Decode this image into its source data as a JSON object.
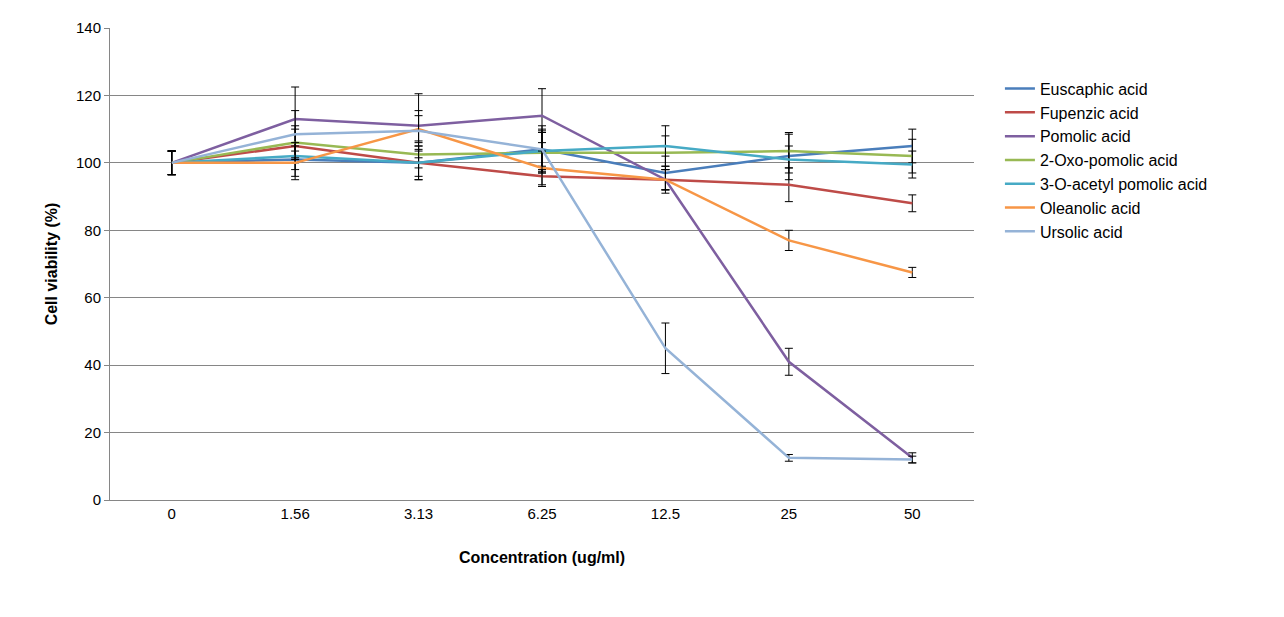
{
  "chart_data": {
    "type": "line",
    "x_label": "Concentration (ug/ml)",
    "y_label": "Cell viability (%)",
    "categories": [
      "0",
      "1.56",
      "3.13",
      "6.25",
      "12.5",
      "25",
      "50"
    ],
    "ylim": [
      0,
      140
    ],
    "yticks": [
      0,
      20,
      40,
      60,
      80,
      100,
      120,
      140
    ],
    "grid": true,
    "legend": "right",
    "series": [
      {
        "name": "Euscaphic acid",
        "color": "#4a7ebb",
        "values": [
          100,
          101,
          100,
          104,
          97,
          102,
          105
        ],
        "errors": [
          3.5,
          5,
          4,
          7,
          5,
          7,
          5
        ]
      },
      {
        "name": "Fupenzic acid",
        "color": "#be4b48",
        "values": [
          100,
          105,
          100,
          96,
          95,
          93.5,
          88
        ],
        "errors": [
          3.5,
          5,
          5,
          3,
          3,
          5,
          2.5
        ]
      },
      {
        "name": "Pomolic acid",
        "color": "#7e5fa0",
        "values": [
          100,
          113,
          111,
          114,
          95,
          41,
          12.5
        ],
        "errors": [
          3.5,
          9.5,
          9.5,
          8,
          4,
          4,
          1.5
        ]
      },
      {
        "name": "2-Oxo-pomolic acid",
        "color": "#98b954",
        "values": [
          100,
          106,
          102.5,
          103,
          103,
          103.5,
          102
        ],
        "errors": [
          3.5,
          5,
          4,
          6,
          5,
          5,
          5
        ]
      },
      {
        "name": "3-O-acetyl pomolic acid",
        "color": "#46aac5",
        "values": [
          100,
          102,
          100,
          103.5,
          105,
          101,
          99.5
        ],
        "errors": [
          3.5,
          4,
          5,
          6,
          6,
          4,
          4
        ]
      },
      {
        "name": "Oleanolic acid",
        "color": "#f79646",
        "values": [
          100,
          100,
          110,
          98.5,
          95,
          77,
          67.5
        ],
        "errors": [
          3.5,
          5,
          4,
          5,
          3,
          3,
          1.5
        ]
      },
      {
        "name": "Ursolic acid",
        "color": "#95b3d7",
        "values": [
          100,
          108.5,
          109.5,
          104,
          45,
          12.5,
          12
        ],
        "errors": [
          3.5,
          7,
          6,
          6,
          7.5,
          1,
          1
        ]
      }
    ]
  }
}
